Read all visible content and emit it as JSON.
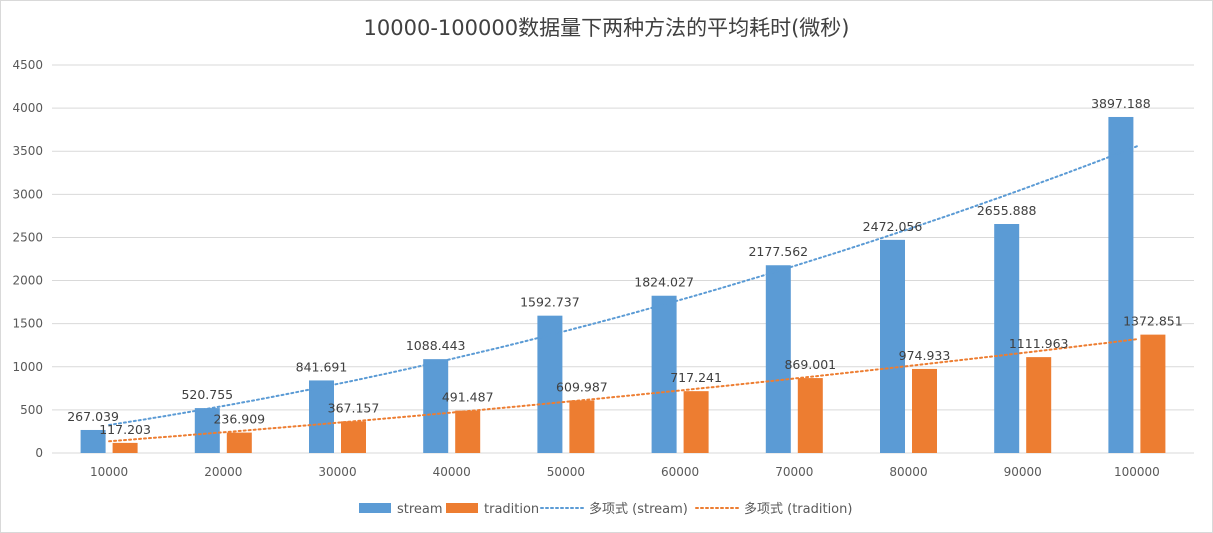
{
  "chart_data": {
    "type": "bar",
    "title": "10000-100000数据量下两种方法的平均耗时(微秒)",
    "categories": [
      "10000",
      "20000",
      "30000",
      "40000",
      "50000",
      "60000",
      "70000",
      "80000",
      "90000",
      "100000"
    ],
    "series": [
      {
        "name": "stream",
        "color": "#5b9bd5",
        "values": [
          267.039,
          520.755,
          841.691,
          1088.443,
          1592.737,
          1824.027,
          2177.562,
          2472.056,
          2655.888,
          3897.188
        ],
        "labels": [
          "267.039",
          "520.755",
          "841.691",
          "1088.443",
          "1592.737",
          "1824.027",
          "2177.562",
          "2472.056",
          "2655.888",
          "3897.188"
        ]
      },
      {
        "name": "tradition",
        "color": "#ed7d31",
        "values": [
          117.203,
          236.909,
          367.157,
          491.487,
          609.987,
          717.241,
          869.001,
          974.933,
          1111.963,
          1372.851
        ],
        "labels": [
          "117.203",
          "236.909",
          "367.157",
          "491.487",
          "609.987",
          "717.241",
          "869.001",
          "974.933",
          "1111.963",
          "1372.851"
        ]
      }
    ],
    "trendlines": [
      {
        "name": "多项式 (stream)",
        "series": "stream",
        "type": "polynomial",
        "degree": 2,
        "color": "#5b9bd5"
      },
      {
        "name": "多项式 (tradition)",
        "series": "tradition",
        "type": "polynomial",
        "degree": 2,
        "color": "#ed7d31"
      }
    ],
    "yticks": [
      "0",
      "500",
      "1000",
      "1500",
      "2000",
      "2500",
      "3000",
      "3500",
      "4000",
      "4500"
    ],
    "ylim": [
      0,
      4500
    ],
    "grid": true,
    "xlabel": "",
    "ylabel": "",
    "legend_position": "bottom"
  }
}
